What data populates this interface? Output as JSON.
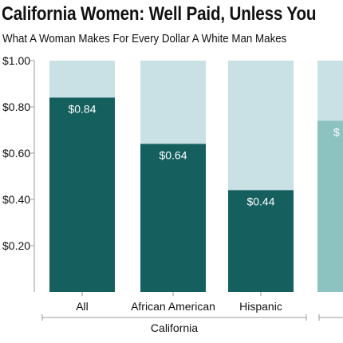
{
  "header": {
    "title": "California Women: Well Paid, Unless You",
    "subtitle": "What A Woman Makes For Every Dollar A White Man Makes"
  },
  "chart_data": {
    "type": "bar",
    "ylim": [
      0,
      1.0
    ],
    "yticks": [
      {
        "value": 0.2,
        "label": "$0.20"
      },
      {
        "value": 0.4,
        "label": "$0.40"
      },
      {
        "value": 0.6,
        "label": "$0.60"
      },
      {
        "value": 0.8,
        "label": "$0.80"
      },
      {
        "value": 1.0,
        "label": "$1.00"
      }
    ],
    "categories": [
      "All",
      "African American",
      "Hispanic",
      ""
    ],
    "values": [
      0.84,
      0.64,
      0.44,
      0.74
    ],
    "data_labels": [
      "$0.84",
      "$0.64",
      "$0.44",
      "$"
    ],
    "reference_value": 1.0,
    "groups": [
      {
        "label": "California",
        "categories": [
          "All",
          "African American",
          "Hispanic"
        ]
      },
      {
        "label": "",
        "categories": [
          ""
        ]
      }
    ],
    "grid": false,
    "colors": {
      "bar_primary": "#155f5f",
      "bar_secondary": "#8cc3c1",
      "bar_background": "#c9e1e4",
      "axis": "#999999",
      "label_text": "#ffffff"
    }
  }
}
